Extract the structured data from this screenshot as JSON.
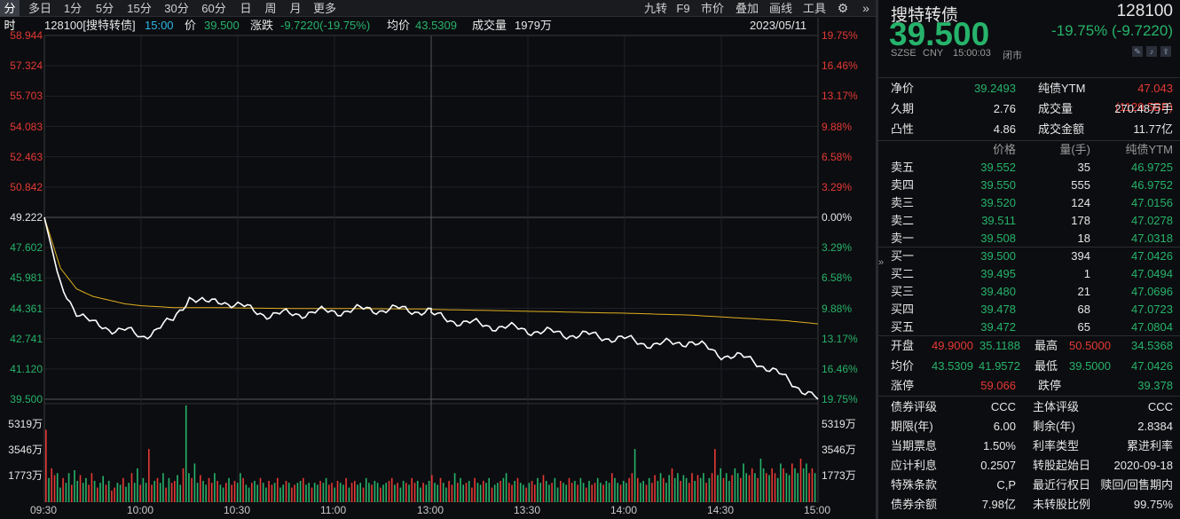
{
  "toolbar": {
    "left": [
      "分时",
      "多日",
      "1分",
      "5分",
      "15分",
      "30分",
      "60分",
      "日",
      "周",
      "月",
      "更多"
    ],
    "right": [
      "九转",
      "F9",
      "市价",
      "叠加",
      "画线",
      "工具"
    ]
  },
  "info": {
    "code_name": "128100[搜特转债]",
    "time": "15:00",
    "price_label": "价",
    "price": "39.500",
    "change_label": "涨跌",
    "change": "-9.7220(-19.75%)",
    "avg_label": "均价",
    "avg": "43.5309",
    "vol_label": "成交量",
    "vol": "1979万",
    "date": "2023/05/11"
  },
  "price_axis": [
    {
      "p": "58.944",
      "pct": "19.75%"
    },
    {
      "p": "57.324",
      "pct": "16.46%"
    },
    {
      "p": "55.703",
      "pct": "13.17%"
    },
    {
      "p": "54.083",
      "pct": "9.88%"
    },
    {
      "p": "52.463",
      "pct": "6.58%"
    },
    {
      "p": "50.842",
      "pct": "3.29%"
    },
    {
      "p": "49.222",
      "pct": "0.00%"
    },
    {
      "p": "47.602",
      "pct": "3.29%"
    },
    {
      "p": "45.981",
      "pct": "6.58%"
    },
    {
      "p": "44.361",
      "pct": "9.88%"
    },
    {
      "p": "42.741",
      "pct": "13.17%"
    },
    {
      "p": "41.120",
      "pct": "16.46%"
    },
    {
      "p": "39.500",
      "pct": "19.75%"
    }
  ],
  "vol_axis": [
    "5319万",
    "3546万",
    "1773万"
  ],
  "time_axis": [
    "09:30",
    "10:00",
    "10:30",
    "11:00",
    "13:00",
    "13:30",
    "14:00",
    "14:30",
    "15:00"
  ],
  "colors": {
    "up": "#e53935",
    "down": "#26b36b",
    "price_line": "#ffffff",
    "avg_line": "#e0b020"
  },
  "chart_data": {
    "type": "line",
    "x": [
      "09:30",
      "09:35",
      "09:40",
      "09:45",
      "09:50",
      "09:55",
      "10:00",
      "10:05",
      "10:10",
      "10:15",
      "10:20",
      "10:25",
      "10:30",
      "10:40",
      "10:50",
      "11:00",
      "11:10",
      "11:20",
      "11:30",
      "13:00",
      "13:10",
      "13:20",
      "13:30",
      "13:40",
      "13:50",
      "14:00",
      "14:10",
      "14:20",
      "14:30",
      "14:40",
      "14:50",
      "15:00"
    ],
    "series": [
      {
        "values": [
          49.222,
          45.6,
          44.2,
          43.5,
          43.3,
          43.2,
          42.8,
          43.3,
          43.7,
          45.0,
          44.6,
          44.8,
          44.5,
          44.0,
          44.1,
          44.2,
          44.3,
          44.3,
          44.2,
          44.0,
          43.6,
          43.4,
          43.2,
          43.0,
          42.9,
          42.7,
          42.4,
          42.6,
          41.9,
          41.6,
          40.6,
          39.5
        ]
      },
      {
        "values": [
          49.222,
          46.5,
          45.4,
          45.0,
          44.8,
          44.6,
          44.5,
          44.45,
          44.4,
          44.4,
          44.4,
          44.4,
          44.38,
          44.36,
          44.35,
          44.35,
          44.34,
          44.33,
          44.32,
          44.3,
          44.27,
          44.24,
          44.2,
          44.17,
          44.13,
          44.1,
          44.05,
          44.0,
          43.9,
          43.8,
          43.7,
          43.53
        ]
      }
    ],
    "volume_ratio": [
      0.75,
      0.25,
      0.35,
      0.28,
      0.3,
      0.15,
      0.25,
      0.2,
      0.3,
      0.18,
      0.33,
      0.22,
      0.28,
      0.2,
      0.25,
      0.18,
      0.3,
      0.22,
      0.15,
      0.2,
      0.27,
      0.18,
      0.22,
      0.12,
      0.15,
      0.2,
      0.18,
      0.25,
      0.16,
      0.2,
      0.3,
      0.2,
      0.35,
      0.18,
      0.25,
      0.2,
      0.55,
      0.18,
      0.22,
      0.25,
      0.2,
      0.3,
      0.15,
      0.25,
      0.2,
      0.22,
      0.28,
      0.18,
      0.35,
      1.0,
      0.3,
      0.25,
      0.4,
      0.2,
      0.28,
      0.22,
      0.18,
      0.25,
      0.2,
      0.3,
      0.22,
      0.18,
      0.15,
      0.2,
      0.25,
      0.18,
      0.22,
      0.2,
      0.3,
      0.25,
      0.18,
      0.15,
      0.2,
      0.22,
      0.18,
      0.25,
      0.2,
      0.15,
      0.22,
      0.18,
      0.2,
      0.25,
      0.15,
      0.18,
      0.22,
      0.2,
      0.15,
      0.18,
      0.2,
      0.22,
      0.25,
      0.18,
      0.2,
      0.15,
      0.2,
      0.18,
      0.22,
      0.2,
      0.25,
      0.18,
      0.2,
      0.15,
      0.22,
      0.2,
      0.18,
      0.25,
      0.15,
      0.2,
      0.22,
      0.18,
      0.2,
      0.15,
      0.25,
      0.2,
      0.18,
      0.22,
      0.2,
      0.15,
      0.18,
      0.2,
      0.22,
      0.25,
      0.18,
      0.2,
      0.15,
      0.22,
      0.2,
      0.18,
      0.25,
      0.2,
      0.22,
      0.15,
      0.2,
      0.18,
      0.22,
      0.28,
      0.2,
      0.18,
      0.25,
      0.2,
      0.15,
      0.22,
      0.18,
      0.3,
      0.2,
      0.25,
      0.18,
      0.2,
      0.22,
      0.15,
      0.25,
      0.2,
      0.18,
      0.22,
      0.2,
      0.25,
      0.15,
      0.18,
      0.2,
      0.22,
      0.25,
      0.3,
      0.2,
      0.18,
      0.22,
      0.25,
      0.2,
      0.18,
      0.15,
      0.2,
      0.22,
      0.18,
      0.25,
      0.2,
      0.28,
      0.22,
      0.18,
      0.2,
      0.25,
      0.15,
      0.22,
      0.2,
      0.18,
      0.25,
      0.2,
      0.22,
      0.18,
      0.25,
      0.2,
      0.15,
      0.22,
      0.18,
      0.2,
      0.25,
      0.2,
      0.18,
      0.22,
      0.2,
      0.3,
      0.25,
      0.2,
      0.18,
      0.22,
      0.2,
      0.25,
      0.3,
      0.55,
      0.25,
      0.2,
      0.22,
      0.18,
      0.25,
      0.2,
      0.28,
      0.22,
      0.3,
      0.25,
      0.2,
      0.28,
      0.35,
      0.25,
      0.3,
      0.22,
      0.28,
      0.25,
      0.2,
      0.3,
      0.22,
      0.28,
      0.25,
      0.3,
      0.2,
      0.25,
      0.3,
      0.55,
      0.28,
      0.35,
      0.25,
      0.3,
      0.22,
      0.28,
      0.35,
      0.3,
      0.25,
      0.4,
      0.3,
      0.28,
      0.35,
      0.3,
      0.25,
      0.45,
      0.35,
      0.3,
      0.28,
      0.35,
      0.3,
      0.25,
      0.4,
      0.35,
      0.3,
      0.28,
      0.4,
      0.35,
      0.3,
      0.45,
      0.35,
      0.4,
      0.3,
      0.35,
      0.3
    ]
  },
  "right": {
    "name": "搜特转债",
    "code": "128100",
    "price": "39.500",
    "chg": "-19.75% (-9.7220)",
    "sub": [
      "SZSE",
      "CNY",
      "15:00:03",
      "闭市"
    ],
    "stats": [
      [
        "净价",
        "39.2493",
        "纯债YTM",
        "47.043 (1129.5BP)"
      ],
      [
        "久期",
        "2.76",
        "成交量",
        "270.48万手"
      ],
      [
        "凸性",
        "4.86",
        "成交金额",
        "11.77亿"
      ]
    ],
    "ob_head": [
      "价格",
      "量(手)",
      "纯债YTM"
    ],
    "sells": [
      [
        "卖五",
        "39.552",
        "35",
        "46.9725"
      ],
      [
        "卖四",
        "39.550",
        "555",
        "46.9752"
      ],
      [
        "卖三",
        "39.520",
        "124",
        "47.0156"
      ],
      [
        "卖二",
        "39.511",
        "178",
        "47.0278"
      ],
      [
        "卖一",
        "39.508",
        "18",
        "47.0318"
      ]
    ],
    "buys": [
      [
        "买一",
        "39.500",
        "394",
        "47.0426"
      ],
      [
        "买二",
        "39.495",
        "1",
        "47.0494"
      ],
      [
        "买三",
        "39.480",
        "21",
        "47.0696"
      ],
      [
        "买四",
        "39.478",
        "68",
        "47.0723"
      ],
      [
        "买五",
        "39.472",
        "65",
        "47.0804"
      ]
    ],
    "summary": [
      [
        "开盘",
        "49.9000",
        "35.1188",
        "最高",
        "50.5000",
        "34.5368"
      ],
      [
        "均价",
        "43.5309",
        "41.9572",
        "最低",
        "39.5000",
        "47.0426"
      ]
    ],
    "limit": [
      "涨停",
      "59.066",
      "跌停",
      "39.378"
    ],
    "bond": [
      [
        "债券评级",
        "CCC",
        "主体评级",
        "CCC"
      ],
      [
        "期限(年)",
        "6.00",
        "剩余(年)",
        "2.8384"
      ],
      [
        "当期票息",
        "1.50%",
        "利率类型",
        "累进利率"
      ],
      [
        "应计利息",
        "0.2507",
        "转股起始日",
        "2020-09-18"
      ],
      [
        "特殊条款",
        "C,P",
        "最近行权日",
        "赎回/回售期内"
      ],
      [
        "债券余额",
        "7.98亿",
        "未转股比例",
        "99.75%"
      ]
    ]
  }
}
